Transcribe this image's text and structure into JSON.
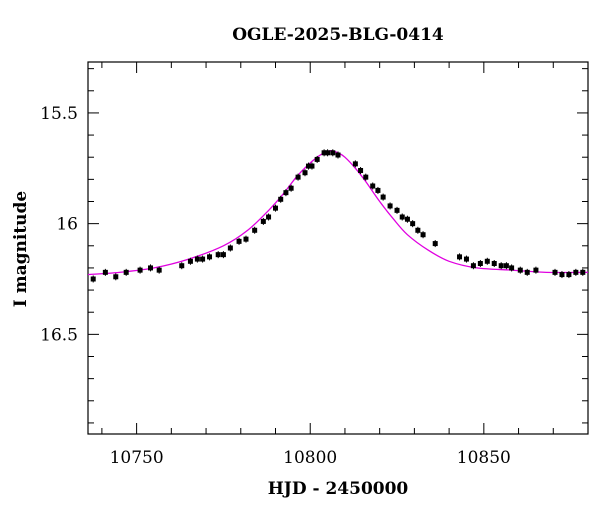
{
  "chart_data": {
    "type": "scatter",
    "title": "OGLE-2025-BLG-0414",
    "xlabel": "HJD - 2450000",
    "ylabel": "I magnitude",
    "xlim": [
      10736,
      10880
    ],
    "ylim": [
      16.95,
      15.27
    ],
    "y_inverted": true,
    "x_ticks": [
      10750,
      10800,
      10850
    ],
    "y_ticks": [
      15.5,
      16,
      16.5
    ],
    "x_tick_labels": [
      "10750",
      "10800",
      "10850"
    ],
    "y_tick_labels": [
      "15.5",
      "16",
      "16.5"
    ],
    "grid": false,
    "model_color": "#e000e0",
    "point_color": "#000000",
    "model": {
      "x": [
        10736,
        10745,
        10755,
        10765,
        10775,
        10782,
        10788,
        10792,
        10796,
        10799,
        10802,
        10804,
        10806,
        10808,
        10810,
        10813,
        10816,
        10820,
        10824,
        10828,
        10834,
        10840,
        10848,
        10858,
        10868,
        10880
      ],
      "y": [
        16.23,
        16.22,
        16.2,
        16.16,
        16.1,
        16.03,
        15.94,
        15.87,
        15.79,
        15.74,
        15.7,
        15.68,
        15.67,
        15.68,
        15.7,
        15.75,
        15.81,
        15.9,
        15.98,
        16.05,
        16.12,
        16.17,
        16.2,
        16.21,
        16.22,
        16.22
      ]
    },
    "points": {
      "x": [
        10737.5,
        10741,
        10744,
        10747,
        10751,
        10754,
        10756.5,
        10763,
        10765.5,
        10767.5,
        10769,
        10771,
        10773.5,
        10775,
        10777,
        10779.5,
        10781.5,
        10784,
        10786.5,
        10788,
        10790,
        10791.5,
        10793,
        10794.5,
        10796.5,
        10798.5,
        10799.5,
        10800.5,
        10802,
        10804,
        10805,
        10806.5,
        10808,
        10813,
        10814.5,
        10816,
        10818,
        10819.5,
        10821,
        10823,
        10825,
        10826.5,
        10828,
        10829.5,
        10831,
        10832.5,
        10836,
        10843,
        10845,
        10847,
        10849,
        10851,
        10853,
        10855,
        10856.5,
        10858,
        10860.5,
        10862.5,
        10865,
        10870.5,
        10872.5,
        10874.5,
        10876.5,
        10878.5
      ],
      "y": [
        16.25,
        16.22,
        16.24,
        16.22,
        16.21,
        16.2,
        16.21,
        16.19,
        16.17,
        16.16,
        16.16,
        16.15,
        16.14,
        16.14,
        16.11,
        16.08,
        16.07,
        16.03,
        15.99,
        15.97,
        15.93,
        15.89,
        15.86,
        15.84,
        15.79,
        15.77,
        15.74,
        15.74,
        15.71,
        15.68,
        15.68,
        15.68,
        15.69,
        15.73,
        15.76,
        15.79,
        15.83,
        15.85,
        15.88,
        15.92,
        15.94,
        15.97,
        15.98,
        16.0,
        16.03,
        16.05,
        16.09,
        16.15,
        16.16,
        16.19,
        16.18,
        16.17,
        16.18,
        16.19,
        16.19,
        16.2,
        16.21,
        16.22,
        16.21,
        16.22,
        16.23,
        16.23,
        16.22,
        16.22
      ]
    }
  }
}
